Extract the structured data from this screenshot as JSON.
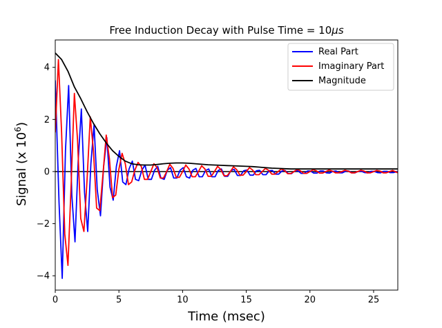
{
  "chart_data": {
    "type": "line",
    "title": "Free Induction Decay with Pulse Time = 10μs",
    "title_prefix": "Free Induction Decay with Pulse Time = 10",
    "title_italic": "μs",
    "xlabel": "Time (msec)",
    "ylabel_prefix": "Signal (x 10",
    "ylabel_exp": "6",
    "ylabel_suffix": ")",
    "xlim": [
      0,
      26.9
    ],
    "ylim": [
      -4.55,
      5.05
    ],
    "x_ticks": [
      0,
      5,
      10,
      15,
      20,
      25
    ],
    "x_tick_labels": [
      "0",
      "5",
      "10",
      "15",
      "20",
      "25"
    ],
    "y_ticks": [
      -4,
      -2,
      0,
      2,
      4
    ],
    "y_tick_labels": [
      "−4",
      "−2",
      "0",
      "2",
      "4"
    ],
    "grid": false,
    "legend_position": "top-right",
    "zero_line": true,
    "series": [
      {
        "name": "Real Part",
        "color": "#0000ff",
        "x": [
          0.0,
          0.3,
          0.55,
          0.8,
          1.05,
          1.3,
          1.55,
          1.8,
          2.05,
          2.3,
          2.55,
          2.8,
          3.05,
          3.3,
          3.55,
          3.8,
          4.05,
          4.3,
          4.55,
          4.8,
          5.05,
          5.3,
          5.55,
          5.8,
          6.05,
          6.3,
          6.55,
          6.8,
          7.05,
          7.3,
          7.55,
          7.8,
          8.05,
          8.3,
          8.55,
          8.8,
          9.05,
          9.3,
          9.55,
          9.8,
          10.05,
          10.3,
          10.55,
          10.8,
          11.05,
          11.3,
          11.55,
          11.8,
          12.05,
          12.3,
          12.55,
          12.8,
          13.05,
          13.3,
          13.55,
          13.8,
          14.05,
          14.3,
          14.55,
          14.8,
          15.05,
          15.3,
          15.55,
          15.8,
          16.05,
          16.3,
          16.55,
          16.8,
          17.05,
          17.3,
          17.55,
          17.8,
          18.05,
          18.3,
          18.55,
          18.8,
          19.05,
          19.3,
          19.55,
          19.8,
          20.05,
          20.3,
          20.55,
          20.8,
          21.05,
          21.3,
          21.55,
          21.8,
          22.05,
          22.3,
          22.55,
          22.8,
          23.05,
          23.3,
          23.55,
          23.8,
          24.05,
          24.3,
          24.55,
          24.8,
          25.05,
          25.3,
          25.55,
          25.8,
          26.05,
          26.3,
          26.55,
          26.9
        ],
        "values": [
          3.5,
          -1.2,
          -4.1,
          0.8,
          3.3,
          -0.9,
          -2.7,
          0.4,
          2.4,
          -0.8,
          -2.3,
          0.3,
          1.8,
          -0.7,
          -1.7,
          0.2,
          1.3,
          -0.6,
          -1.1,
          0.2,
          0.8,
          -0.4,
          -0.5,
          0.1,
          0.4,
          -0.3,
          -0.35,
          0.05,
          0.25,
          -0.3,
          -0.3,
          0.05,
          0.2,
          -0.25,
          -0.3,
          0.05,
          0.15,
          -0.25,
          -0.25,
          0.05,
          0.15,
          -0.2,
          -0.25,
          0.05,
          0.12,
          -0.2,
          -0.2,
          0.04,
          0.1,
          -0.2,
          -0.2,
          0.04,
          0.1,
          -0.18,
          -0.18,
          0.04,
          0.08,
          -0.15,
          -0.15,
          0.03,
          0.06,
          -0.14,
          -0.14,
          0.03,
          0.05,
          -0.12,
          -0.12,
          0.03,
          0.04,
          -0.1,
          -0.1,
          0.02,
          0.04,
          -0.08,
          -0.08,
          0.02,
          0.03,
          -0.07,
          -0.07,
          0.02,
          0.02,
          -0.06,
          -0.06,
          0.02,
          0.02,
          -0.05,
          -0.06,
          0.01,
          0.02,
          -0.05,
          -0.05,
          0.01,
          0.02,
          -0.05,
          -0.05,
          0.01,
          0.01,
          -0.04,
          -0.05,
          0.01,
          0.01,
          -0.04,
          -0.05,
          0.01,
          0.01,
          -0.04,
          -0.04,
          0.0
        ]
      },
      {
        "name": "Imaginary Part",
        "color": "#ff0000",
        "x": [
          0.0,
          0.25,
          0.5,
          0.75,
          1.0,
          1.25,
          1.5,
          1.75,
          2.0,
          2.25,
          2.5,
          2.75,
          3.0,
          3.25,
          3.5,
          3.75,
          4.0,
          4.25,
          4.5,
          4.75,
          5.0,
          5.25,
          5.5,
          5.75,
          6.0,
          6.25,
          6.5,
          6.75,
          7.0,
          7.25,
          7.5,
          7.75,
          8.0,
          8.25,
          8.5,
          8.75,
          9.0,
          9.25,
          9.5,
          9.75,
          10.0,
          10.25,
          10.5,
          10.75,
          11.0,
          11.25,
          11.5,
          11.75,
          12.0,
          12.25,
          12.5,
          12.75,
          13.0,
          13.25,
          13.5,
          13.75,
          14.0,
          14.25,
          14.5,
          14.75,
          15.0,
          15.25,
          15.5,
          15.75,
          16.0,
          16.25,
          16.5,
          16.75,
          17.0,
          17.25,
          17.5,
          17.75,
          18.0,
          18.25,
          18.5,
          18.75,
          19.0,
          19.25,
          19.5,
          19.75,
          20.0,
          20.25,
          20.5,
          20.75,
          21.0,
          21.25,
          21.5,
          21.75,
          22.0,
          22.25,
          22.5,
          22.75,
          23.0,
          23.25,
          23.5,
          23.75,
          24.0,
          24.25,
          24.5,
          24.75,
          25.0,
          25.25,
          25.5,
          25.75,
          26.0,
          26.25,
          26.5,
          26.9
        ],
        "values": [
          1.5,
          4.3,
          1.5,
          -2.4,
          -3.6,
          -0.5,
          3.0,
          1.2,
          -1.8,
          -2.3,
          -0.3,
          2.1,
          0.8,
          -1.4,
          -1.5,
          -0.1,
          1.4,
          0.5,
          -1.0,
          -0.9,
          0.1,
          0.7,
          0.3,
          -0.5,
          -0.4,
          0.05,
          0.35,
          0.2,
          -0.3,
          -0.3,
          0.0,
          0.3,
          0.15,
          -0.25,
          -0.25,
          0.0,
          0.28,
          0.12,
          -0.22,
          -0.22,
          0.0,
          0.25,
          0.1,
          -0.2,
          -0.2,
          0.0,
          0.22,
          0.1,
          -0.18,
          -0.18,
          0.0,
          0.2,
          0.08,
          -0.16,
          -0.16,
          0.0,
          0.18,
          0.07,
          -0.14,
          -0.14,
          0.0,
          0.15,
          0.06,
          -0.12,
          -0.12,
          0.0,
          0.12,
          0.05,
          -0.1,
          -0.1,
          0.0,
          0.1,
          0.04,
          -0.08,
          -0.08,
          0.0,
          0.08,
          0.03,
          -0.07,
          -0.07,
          0.0,
          0.07,
          0.03,
          -0.06,
          -0.06,
          0.0,
          0.06,
          0.02,
          -0.05,
          -0.05,
          0.0,
          0.05,
          0.02,
          -0.05,
          -0.05,
          0.0,
          0.05,
          0.02,
          -0.05,
          -0.05,
          0.0,
          0.04,
          0.02,
          -0.05,
          -0.05,
          0.0,
          0.04,
          -0.05
        ]
      },
      {
        "name": "Magnitude",
        "color": "#000000",
        "x": [
          0.0,
          0.5,
          1.0,
          1.5,
          2.0,
          2.5,
          3.0,
          3.5,
          4.0,
          4.5,
          5.0,
          5.5,
          6.0,
          6.5,
          7.0,
          7.5,
          8.0,
          8.5,
          9.0,
          9.5,
          10.0,
          10.5,
          11.0,
          11.5,
          12.0,
          12.5,
          13.0,
          13.5,
          14.0,
          14.5,
          15.0,
          15.5,
          16.0,
          16.5,
          17.0,
          17.5,
          18.0,
          18.5,
          19.0,
          19.5,
          20.0,
          20.5,
          21.0,
          21.5,
          22.0,
          22.5,
          23.0,
          23.5,
          24.0,
          24.5,
          25.0,
          25.5,
          26.0,
          26.9
        ],
        "values": [
          4.55,
          4.3,
          3.85,
          3.25,
          2.8,
          2.3,
          1.85,
          1.45,
          1.1,
          0.8,
          0.58,
          0.4,
          0.3,
          0.26,
          0.25,
          0.25,
          0.27,
          0.3,
          0.32,
          0.33,
          0.33,
          0.32,
          0.3,
          0.28,
          0.26,
          0.25,
          0.24,
          0.23,
          0.22,
          0.21,
          0.2,
          0.19,
          0.17,
          0.15,
          0.13,
          0.12,
          0.11,
          0.1,
          0.1,
          0.1,
          0.1,
          0.1,
          0.1,
          0.1,
          0.1,
          0.1,
          0.1,
          0.1,
          0.1,
          0.1,
          0.1,
          0.1,
          0.1,
          0.1
        ]
      }
    ]
  }
}
